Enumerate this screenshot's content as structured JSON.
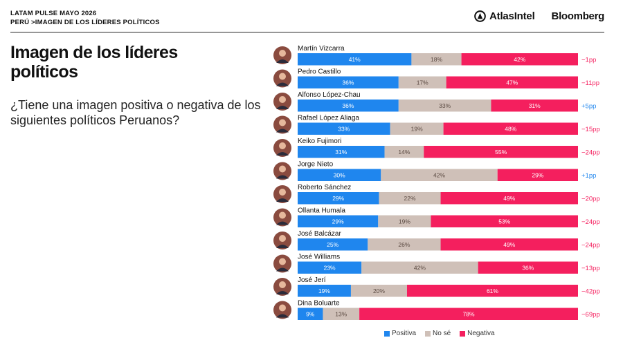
{
  "header": {
    "kicker": "LATAM PULSE MAYO 2026",
    "breadcrumb": "PERÚ >IMAGEN DE LOS LÍDERES POLÍTICOS",
    "brand_atlas": "AtlasIntel",
    "brand_bloomberg": "Bloomberg"
  },
  "title": "Imagen de los líderes políticos",
  "question": "¿Tiene una imagen positiva o negativa de los siguientes políticos Peruanos?",
  "colors": {
    "positive": "#1f86ee",
    "unsure": "#cfc0b8",
    "negative": "#f41f5e",
    "change_positive": "#1f86ee",
    "change_negative": "#f41f5e"
  },
  "chart_data": {
    "type": "bar",
    "orientation": "horizontal-stacked-100",
    "categories": [
      "Martín Vizcarra",
      "Pedro Castillo",
      "Alfonso López-Chau",
      "Rafael López Aliaga",
      "Keiko Fujimori",
      "Jorge Nieto",
      "Roberto Sánchez",
      "Ollanta Humala",
      "José Balcázar",
      "José Williams",
      "José Jerí",
      "Dina Boluarte"
    ],
    "series": [
      {
        "name": "Positiva",
        "values": [
          41,
          36,
          36,
          33,
          31,
          30,
          29,
          29,
          25,
          23,
          19,
          9
        ]
      },
      {
        "name": "No sé",
        "values": [
          18,
          17,
          33,
          19,
          14,
          42,
          22,
          19,
          26,
          42,
          20,
          13
        ]
      },
      {
        "name": "Negativa",
        "values": [
          42,
          47,
          31,
          48,
          55,
          29,
          49,
          53,
          49,
          36,
          61,
          78
        ]
      }
    ],
    "value_labels": [
      [
        "41%",
        "18%",
        "42%"
      ],
      [
        "36%",
        "17%",
        "47%"
      ],
      [
        "36%",
        "33%",
        "31%"
      ],
      [
        "33%",
        "19%",
        "48%"
      ],
      [
        "31%",
        "14%",
        "55%"
      ],
      [
        "30%",
        "42%",
        "29%"
      ],
      [
        "29%",
        "22%",
        "49%"
      ],
      [
        "29%",
        "19%",
        "53%"
      ],
      [
        "25%",
        "26%",
        "49%"
      ],
      [
        "23%",
        "42%",
        "36%"
      ],
      [
        "19%",
        "20%",
        "61%"
      ],
      [
        "9%",
        "13%",
        "78%"
      ]
    ],
    "change": [
      "−1pp",
      "−11pp",
      "+5pp",
      "−15pp",
      "−24pp",
      "+1pp",
      "−20pp",
      "−24pp",
      "−24pp",
      "−13pp",
      "−42pp",
      "−69pp"
    ],
    "change_values": [
      -1,
      -11,
      5,
      -15,
      -24,
      1,
      -20,
      -24,
      -24,
      -13,
      -42,
      -69
    ],
    "xlim": [
      0,
      100
    ],
    "grid": false,
    "legend_position": "bottom"
  }
}
